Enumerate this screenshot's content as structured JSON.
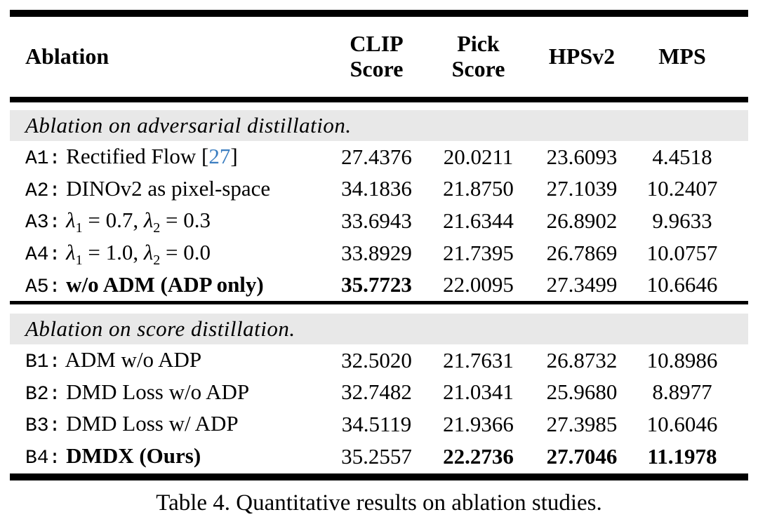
{
  "colors": {
    "citation_blue": "#3a7dc0",
    "section_band_gray": "#e8e8e8"
  },
  "table": {
    "header": {
      "ablation": "Ablation",
      "clip_l1": "CLIP",
      "clip_l2": "Score",
      "pick_l1": "Pick",
      "pick_l2": "Score",
      "hpsv2": "HPSv2",
      "mps": "MPS"
    },
    "section_a": {
      "title": "Ablation on adversarial distillation.",
      "rows": [
        {
          "prefix": "A1:",
          "label": "Rectified Flow [",
          "cite": "27",
          "cite_close": "]",
          "clip": "27.4376",
          "pick": "20.0211",
          "hpsv2": "23.6093",
          "mps": "4.4518"
        },
        {
          "prefix": "A2:",
          "label": "DINOv2 as pixel-space",
          "clip": "34.1836",
          "pick": "21.8750",
          "hpsv2": "27.1039",
          "mps": "10.2407"
        },
        {
          "prefix": "A3:",
          "m_l1": "λ",
          "m_s1": "1",
          "m_t1": " = 0.7, ",
          "m_l2": "λ",
          "m_s2": "2",
          "m_t2": " = 0.3",
          "clip": "33.6943",
          "pick": "21.6344",
          "hpsv2": "26.8902",
          "mps": "9.9633"
        },
        {
          "prefix": "A4:",
          "m_l1": "λ",
          "m_s1": "1",
          "m_t1": " = 1.0, ",
          "m_l2": "λ",
          "m_s2": "2",
          "m_t2": " = 0.0",
          "clip": "33.8929",
          "pick": "21.7395",
          "hpsv2": "26.7869",
          "mps": "10.0757"
        },
        {
          "prefix": "A5:",
          "label": "w/o ADM (ADP only)",
          "clip": "35.7723",
          "pick": "22.0095",
          "hpsv2": "27.3499",
          "mps": "10.6646"
        }
      ]
    },
    "section_b": {
      "title": "Ablation on score distillation.",
      "rows": [
        {
          "prefix": "B1:",
          "label": "ADM w/o ADP",
          "clip": "32.5020",
          "pick": "21.7631",
          "hpsv2": "26.8732",
          "mps": "10.8986"
        },
        {
          "prefix": "B2:",
          "label": "DMD Loss w/o ADP",
          "clip": "32.7482",
          "pick": "21.0341",
          "hpsv2": "25.9680",
          "mps": "8.8977"
        },
        {
          "prefix": "B3:",
          "label": "DMD Loss w/ ADP",
          "clip": "34.5119",
          "pick": "21.9366",
          "hpsv2": "27.3985",
          "mps": "10.6046"
        },
        {
          "prefix": "B4:",
          "label": "DMDX (Ours)",
          "clip": "35.2557",
          "pick": "22.2736",
          "hpsv2": "27.7046",
          "mps": "11.1978"
        }
      ]
    }
  },
  "caption": "Table 4. Quantitative results on ablation studies."
}
